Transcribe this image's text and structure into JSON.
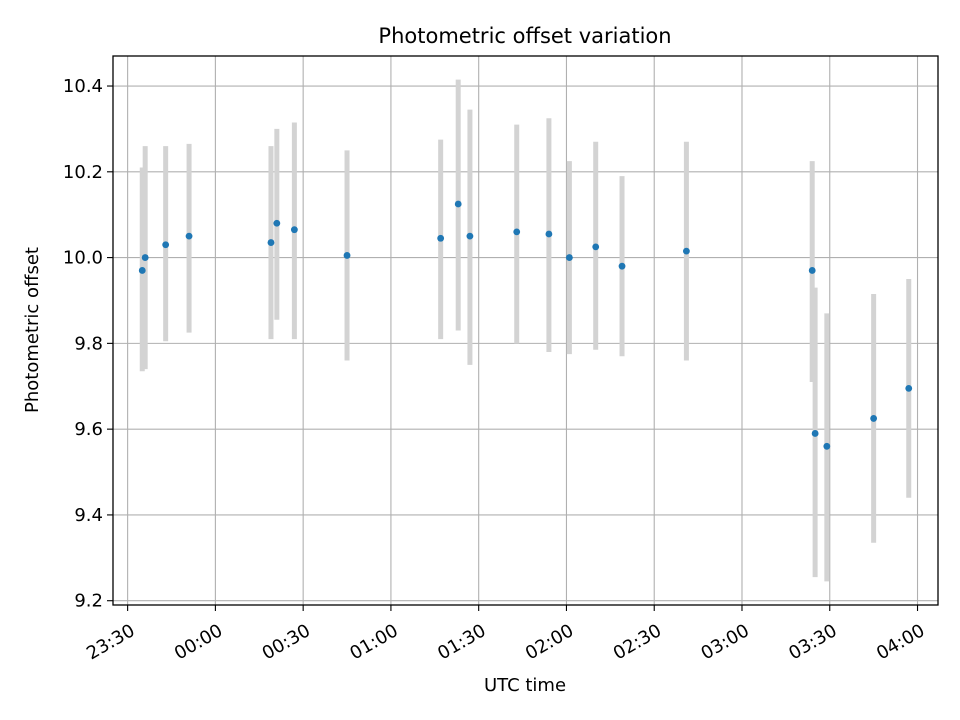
{
  "chart_data": {
    "type": "scatter",
    "title": "Photometric offset variation",
    "xlabel": "UTC time",
    "ylabel": "Photometric offset",
    "x_axis_type": "time",
    "xlim": [
      "23:25",
      "04:07"
    ],
    "ylim": [
      9.19,
      10.47
    ],
    "x_ticks": [
      "23:30",
      "00:00",
      "00:30",
      "01:00",
      "01:30",
      "02:00",
      "02:30",
      "03:00",
      "03:30",
      "04:00"
    ],
    "y_ticks": [
      9.2,
      9.4,
      9.6,
      9.8,
      10.0,
      10.2,
      10.4
    ],
    "grid": true,
    "point_color": "#1f77b4",
    "errorbar_color": "#d3d3d3",
    "series": [
      {
        "points": [
          {
            "x": "23:35",
            "y": 9.97,
            "ylow": 9.735,
            "yhigh": 10.21
          },
          {
            "x": "23:36",
            "y": 10.0,
            "ylow": 9.74,
            "yhigh": 10.26
          },
          {
            "x": "23:43",
            "y": 10.03,
            "ylow": 9.805,
            "yhigh": 10.26
          },
          {
            "x": "23:51",
            "y": 10.05,
            "ylow": 9.825,
            "yhigh": 10.265
          },
          {
            "x": "00:19",
            "y": 10.035,
            "ylow": 9.81,
            "yhigh": 10.26
          },
          {
            "x": "00:21",
            "y": 10.08,
            "ylow": 9.855,
            "yhigh": 10.3
          },
          {
            "x": "00:27",
            "y": 10.065,
            "ylow": 9.81,
            "yhigh": 10.315
          },
          {
            "x": "00:45",
            "y": 10.005,
            "ylow": 9.76,
            "yhigh": 10.25
          },
          {
            "x": "01:17",
            "y": 10.045,
            "ylow": 9.81,
            "yhigh": 10.275
          },
          {
            "x": "01:23",
            "y": 10.125,
            "ylow": 9.83,
            "yhigh": 10.415
          },
          {
            "x": "01:27",
            "y": 10.05,
            "ylow": 9.75,
            "yhigh": 10.345
          },
          {
            "x": "01:43",
            "y": 10.06,
            "ylow": 9.8,
            "yhigh": 10.31
          },
          {
            "x": "01:54",
            "y": 10.055,
            "ylow": 9.78,
            "yhigh": 10.325
          },
          {
            "x": "02:01",
            "y": 10.0,
            "ylow": 9.775,
            "yhigh": 10.225
          },
          {
            "x": "02:10",
            "y": 10.025,
            "ylow": 9.785,
            "yhigh": 10.27
          },
          {
            "x": "02:19",
            "y": 9.98,
            "ylow": 9.77,
            "yhigh": 10.19
          },
          {
            "x": "02:41",
            "y": 10.015,
            "ylow": 9.76,
            "yhigh": 10.27
          },
          {
            "x": "03:24",
            "y": 9.97,
            "ylow": 9.71,
            "yhigh": 10.225
          },
          {
            "x": "03:25",
            "y": 9.59,
            "ylow": 9.255,
            "yhigh": 9.93
          },
          {
            "x": "03:29",
            "y": 9.56,
            "ylow": 9.245,
            "yhigh": 9.87
          },
          {
            "x": "03:45",
            "y": 9.625,
            "ylow": 9.335,
            "yhigh": 9.915
          },
          {
            "x": "03:57",
            "y": 9.695,
            "ylow": 9.44,
            "yhigh": 9.95
          }
        ]
      }
    ]
  }
}
